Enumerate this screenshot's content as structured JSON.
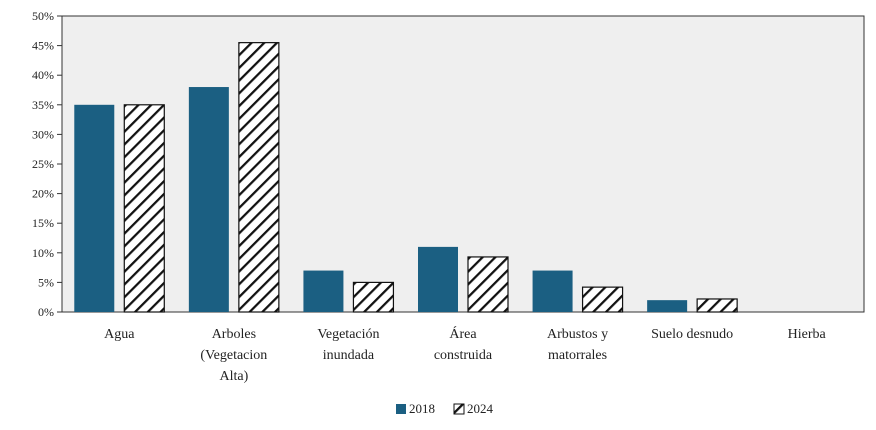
{
  "chart_data": {
    "type": "bar",
    "title": "",
    "xlabel": "",
    "ylabel": "",
    "ylim": [
      0,
      50
    ],
    "y_ticks": [
      "0%",
      "5%",
      "10%",
      "15%",
      "20%",
      "25%",
      "30%",
      "35%",
      "40%",
      "45%",
      "50%"
    ],
    "y_tick_values": [
      0,
      5,
      10,
      15,
      20,
      25,
      30,
      35,
      40,
      45,
      50
    ],
    "grid": false,
    "legend_position": "bottom",
    "categories": [
      [
        "Agua"
      ],
      [
        "Arboles",
        "(Vegetacion",
        "Alta)"
      ],
      [
        "Vegetación",
        "inundada"
      ],
      [
        "Área",
        "construida"
      ],
      [
        "Arbustos y",
        "matorrales"
      ],
      [
        "Suelo desnudo"
      ],
      [
        "Hierba"
      ]
    ],
    "series": [
      {
        "name": "2018",
        "pattern": "solid",
        "color": "#1b5f82",
        "values": [
          35,
          38,
          7,
          11,
          7,
          2,
          0
        ]
      },
      {
        "name": "2024",
        "pattern": "hatch",
        "color": "#111111",
        "values": [
          35,
          45.5,
          5,
          9.3,
          4.2,
          2.2,
          0
        ]
      }
    ],
    "plot_background": "#efefef"
  }
}
